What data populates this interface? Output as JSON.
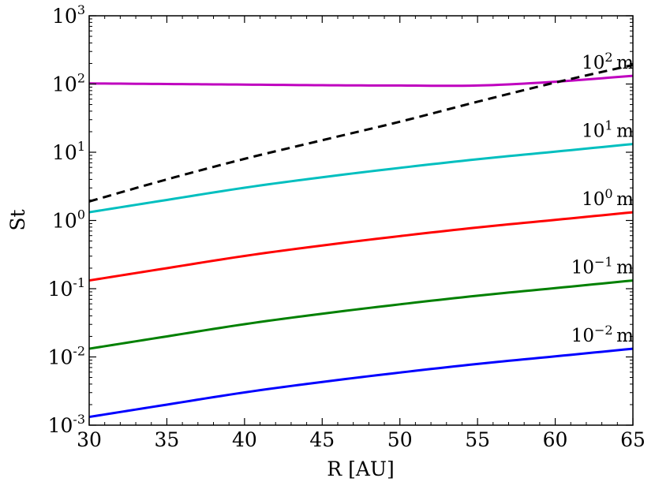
{
  "chart_data": {
    "type": "line",
    "xlabel": "R [AU]",
    "ylabel": "St",
    "xlim": [
      30,
      65
    ],
    "ylim": [
      0.001,
      1000
    ],
    "yscale": "log",
    "grid": false,
    "x_ticks": [
      {
        "value": 30,
        "label": "30"
      },
      {
        "value": 35,
        "label": "35"
      },
      {
        "value": 40,
        "label": "40"
      },
      {
        "value": 45,
        "label": "45"
      },
      {
        "value": 50,
        "label": "50"
      },
      {
        "value": 55,
        "label": "55"
      },
      {
        "value": 60,
        "label": "60"
      },
      {
        "value": 65,
        "label": "65"
      }
    ],
    "y_ticks": [
      {
        "value": 0.001,
        "base": "10",
        "exp": "-3"
      },
      {
        "value": 0.01,
        "base": "10",
        "exp": "-2"
      },
      {
        "value": 0.1,
        "base": "10",
        "exp": "-1"
      },
      {
        "value": 1,
        "base": "10",
        "exp": "0"
      },
      {
        "value": 10,
        "base": "10",
        "exp": "1"
      },
      {
        "value": 100,
        "base": "10",
        "exp": "2"
      },
      {
        "value": 1000,
        "base": "10",
        "exp": "3"
      }
    ],
    "x": [
      30,
      35,
      40,
      45,
      50,
      55,
      60,
      65
    ],
    "series": [
      {
        "color": "#0000ff",
        "dash": false,
        "label_base": "10",
        "label_exp": "−2",
        "label_unit": "m",
        "values": [
          0.00132,
          0.002,
          0.00302,
          0.0043,
          0.0059,
          0.0079,
          0.0102,
          0.0132
        ]
      },
      {
        "color": "#008000",
        "dash": false,
        "label_base": "10",
        "label_exp": "−1",
        "label_unit": "m",
        "values": [
          0.0132,
          0.02,
          0.0302,
          0.043,
          0.059,
          0.079,
          0.102,
          0.132
        ]
      },
      {
        "color": "#ff0000",
        "dash": false,
        "label_base": "10",
        "label_exp": "0",
        "label_unit": "m",
        "values": [
          0.132,
          0.2,
          0.302,
          0.43,
          0.59,
          0.79,
          1.02,
          1.32
        ]
      },
      {
        "color": "#00bfbf",
        "dash": false,
        "label_base": "10",
        "label_exp": "1",
        "label_unit": "m",
        "values": [
          1.32,
          2.0,
          3.02,
          4.3,
          5.9,
          7.9,
          10.2,
          13.2
        ]
      },
      {
        "color": "#bf00bf",
        "dash": false,
        "label_base": "10",
        "label_exp": "2",
        "label_unit": "m",
        "values": [
          102,
          100,
          98,
          96,
          95,
          95,
          108,
          132
        ]
      },
      {
        "color": "#000000",
        "dash": true,
        "values": [
          1.9,
          4.0,
          8.0,
          15.0,
          28.0,
          55.0,
          105.0,
          190.0
        ]
      }
    ]
  }
}
